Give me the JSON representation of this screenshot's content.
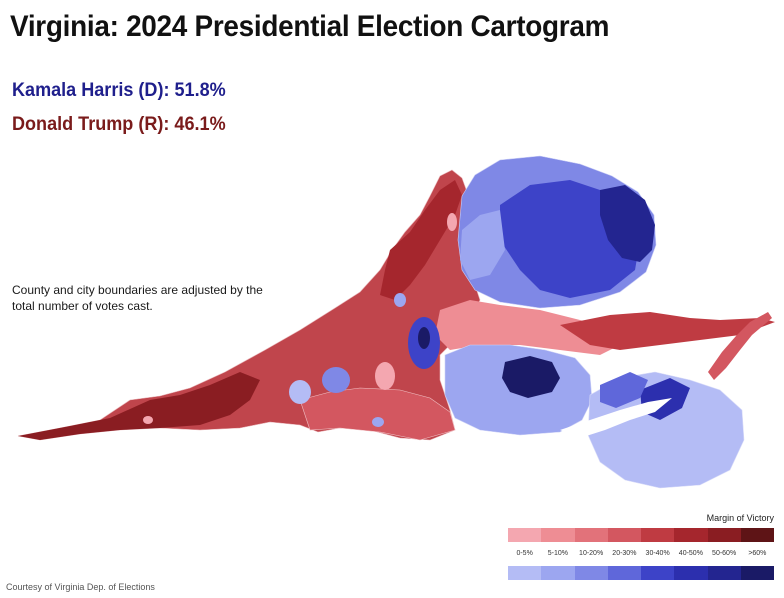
{
  "title": "Virginia: 2024 Presidential Election Cartogram",
  "results": {
    "democrat": {
      "text": "Kamala Harris (D): 51.8%",
      "color": "#1f1f8c"
    },
    "republican": {
      "text": "Donald Trump (R): 46.1%",
      "color": "#7a1b1b"
    }
  },
  "note": "County and city boundaries are adjusted by the total number of votes cast.",
  "legend": {
    "title": "Margin of Victory",
    "labels": [
      "0-5%",
      "5-10%",
      "10-20%",
      "20-30%",
      "30-40%",
      "40-50%",
      "50-60%",
      ">60%"
    ],
    "republican_colors": [
      "#f4a7b0",
      "#ee8d94",
      "#e2727a",
      "#d35760",
      "#bf3b42",
      "#a5262d",
      "#8a1d22",
      "#5e1416"
    ],
    "democrat_colors": [
      "#b4bcf5",
      "#9ca6f0",
      "#7f88e6",
      "#5f67da",
      "#3d43c8",
      "#2c2fae",
      "#232590",
      "#1a1a66"
    ]
  },
  "credit": "Courtesy of Virginia Dep. of Elections"
}
